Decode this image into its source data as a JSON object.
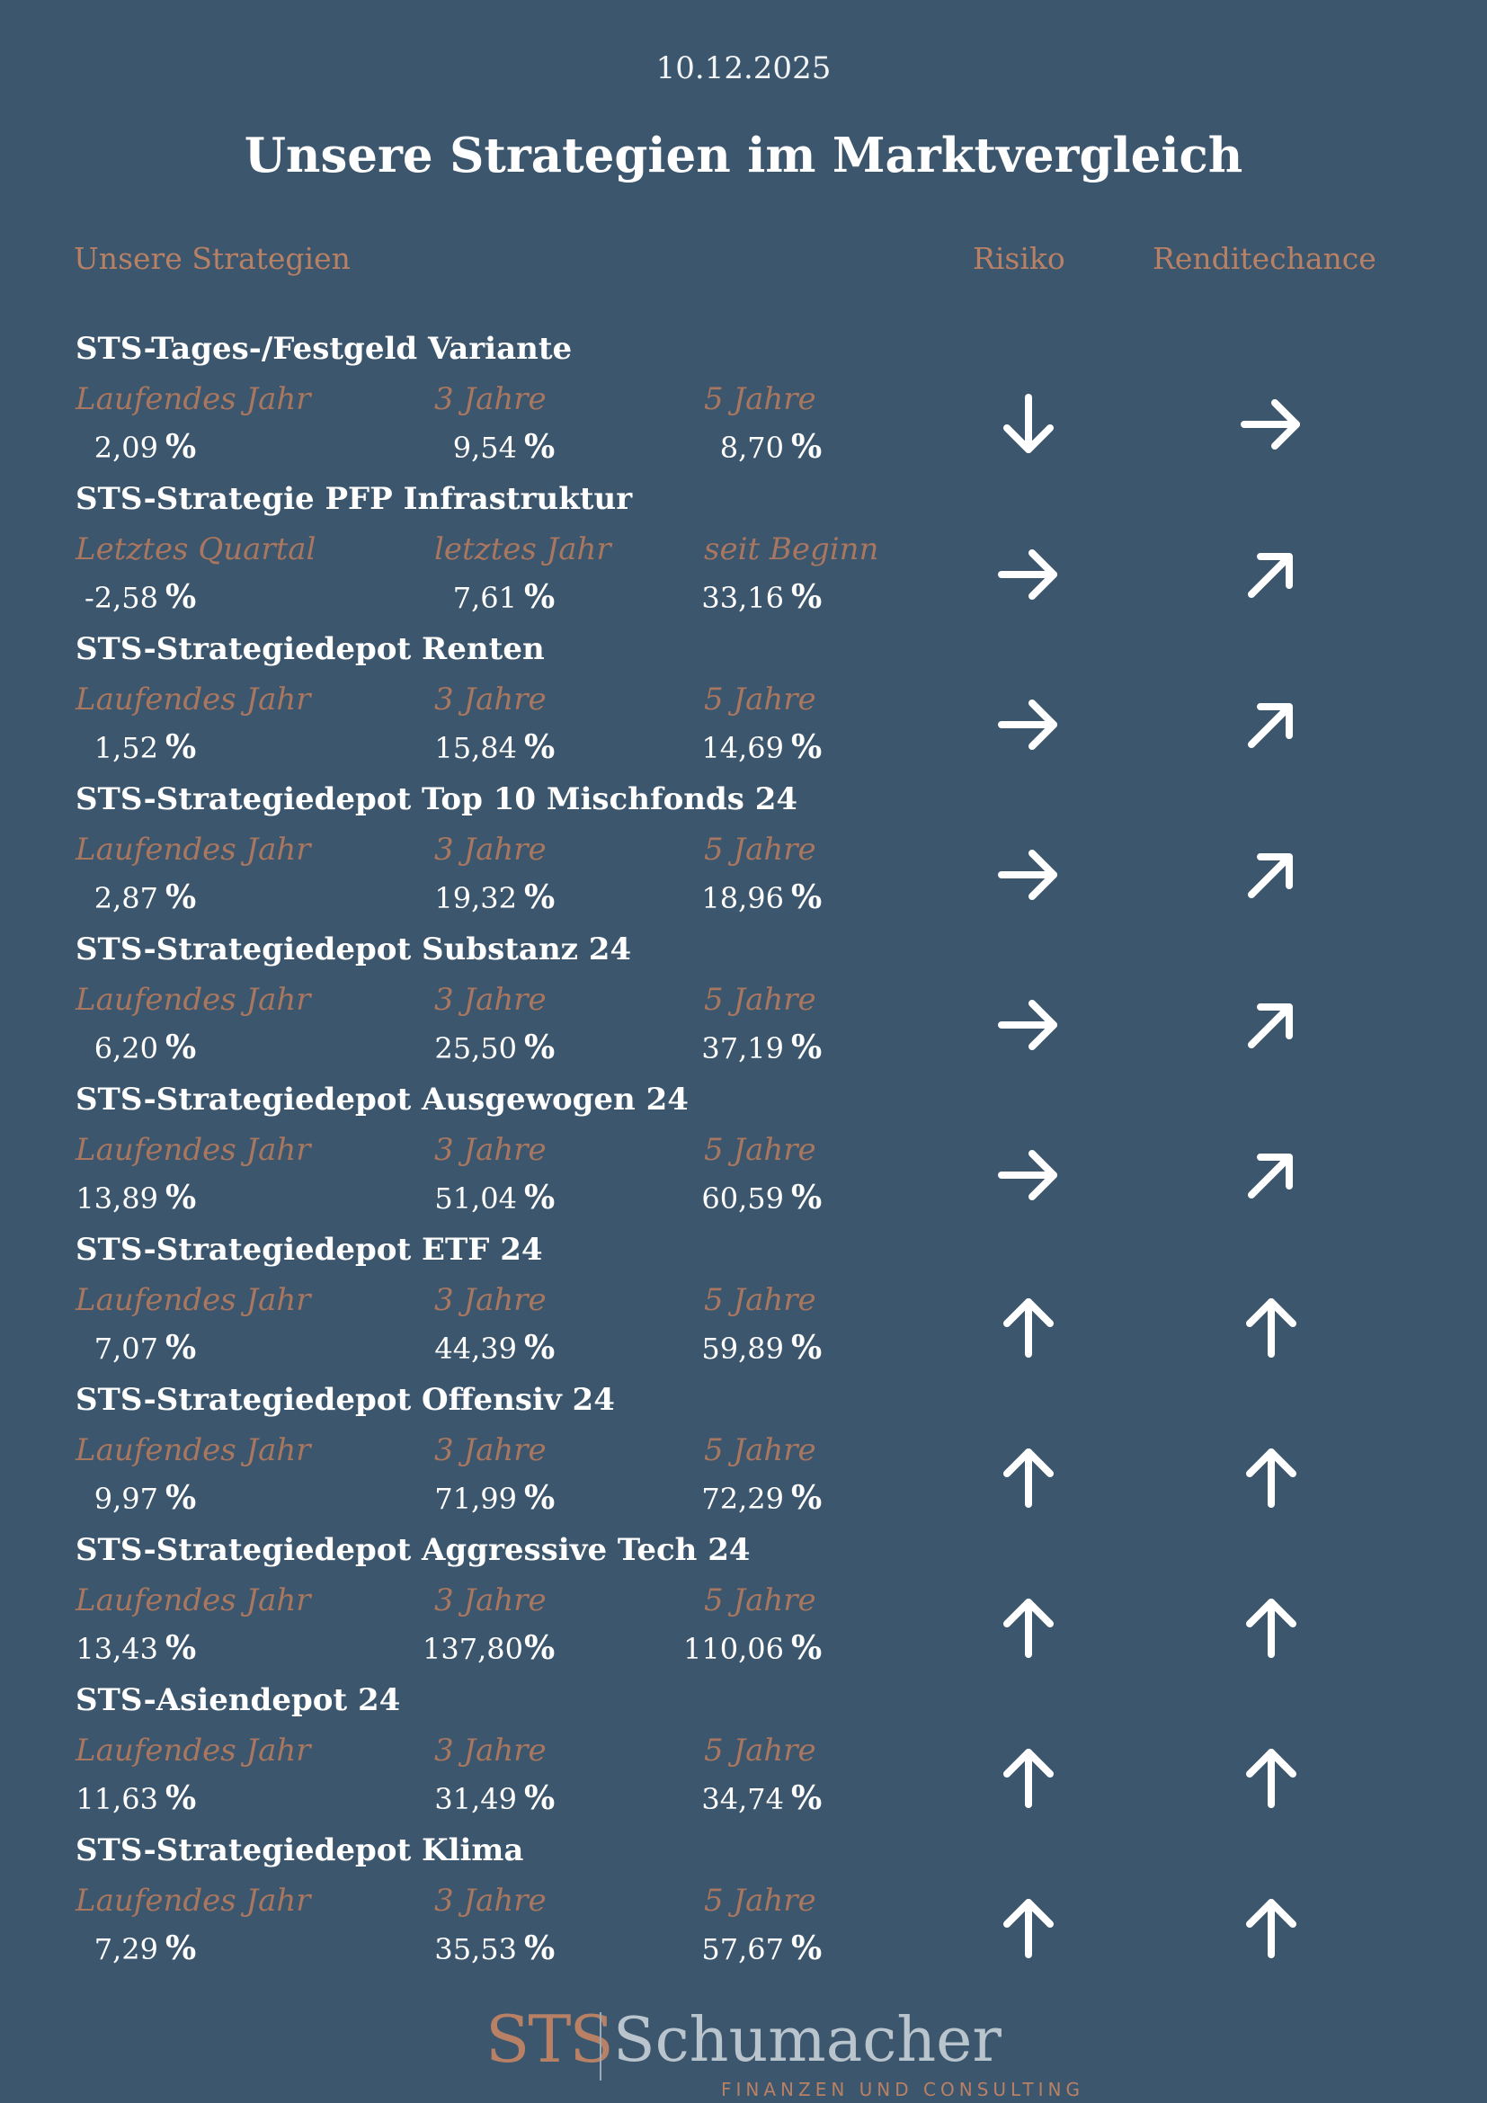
{
  "date": "10.12.2025",
  "title": "Unsere Strategien im Marktvergleich",
  "columns": {
    "strategies": "Unsere Strategien",
    "risk": "Risiko",
    "return_chance": "Renditechance"
  },
  "percent_sign": "%",
  "strategies": [
    {
      "name": "STS-Tages-/Festgeld Variante",
      "labels": [
        "Laufendes Jahr",
        "3 Jahre",
        "5 Jahre"
      ],
      "values": [
        "2,09",
        "9,54",
        "8,70"
      ],
      "risk_icon": "arrow-down-icon",
      "return_icon": "arrow-right-icon"
    },
    {
      "name": "STS-Strategie PFP Infrastruktur",
      "labels": [
        "Letztes Quartal",
        "letztes Jahr",
        "seit Beginn"
      ],
      "values": [
        "-2,58",
        "7,61",
        "33,16"
      ],
      "risk_icon": "arrow-right-icon",
      "return_icon": "arrow-up-right-icon"
    },
    {
      "name": "STS-Strategiedepot Renten",
      "labels": [
        "Laufendes Jahr",
        "3 Jahre",
        "5 Jahre"
      ],
      "values": [
        "1,52",
        "15,84",
        "14,69"
      ],
      "risk_icon": "arrow-right-icon",
      "return_icon": "arrow-up-right-icon"
    },
    {
      "name": "STS-Strategiedepot Top 10 Mischfonds 24",
      "labels": [
        "Laufendes Jahr",
        "3 Jahre",
        "5 Jahre"
      ],
      "values": [
        "2,87",
        "19,32",
        "18,96"
      ],
      "risk_icon": "arrow-right-icon",
      "return_icon": "arrow-up-right-icon"
    },
    {
      "name": "STS-Strategiedepot Substanz 24",
      "labels": [
        "Laufendes Jahr",
        "3 Jahre",
        "5 Jahre"
      ],
      "values": [
        "6,20",
        "25,50",
        "37,19"
      ],
      "risk_icon": "arrow-right-icon",
      "return_icon": "arrow-up-right-icon"
    },
    {
      "name": "STS-Strategiedepot Ausgewogen 24",
      "labels": [
        "Laufendes Jahr",
        "3 Jahre",
        "5 Jahre"
      ],
      "values": [
        "13,89",
        "51,04",
        "60,59"
      ],
      "risk_icon": "arrow-right-icon",
      "return_icon": "arrow-up-right-icon"
    },
    {
      "name": "STS-Strategiedepot ETF 24",
      "labels": [
        "Laufendes Jahr",
        "3 Jahre",
        "5 Jahre"
      ],
      "values": [
        "7,07",
        "44,39",
        "59,89"
      ],
      "risk_icon": "arrow-up-icon",
      "return_icon": "arrow-up-icon"
    },
    {
      "name": "STS-Strategiedepot Offensiv 24",
      "labels": [
        "Laufendes Jahr",
        "3 Jahre",
        "5 Jahre"
      ],
      "values": [
        "9,97",
        "71,99",
        "72,29"
      ],
      "risk_icon": "arrow-up-icon",
      "return_icon": "arrow-up-icon"
    },
    {
      "name": "STS-Strategiedepot Aggressive Tech 24",
      "labels": [
        "Laufendes Jahr",
        "3 Jahre",
        "5 Jahre"
      ],
      "values": [
        "13,43",
        "137,80",
        "110,06"
      ],
      "risk_icon": "arrow-up-icon",
      "return_icon": "arrow-up-icon"
    },
    {
      "name": "STS-Asiendepot 24",
      "labels": [
        "Laufendes Jahr",
        "3 Jahre",
        "5 Jahre"
      ],
      "values": [
        "11,63",
        "31,49",
        "34,74"
      ],
      "risk_icon": "arrow-up-icon",
      "return_icon": "arrow-up-icon"
    },
    {
      "name": "STS-Strategiedepot Klima",
      "labels": [
        "Laufendes Jahr",
        "3 Jahre",
        "5 Jahre"
      ],
      "values": [
        "7,29",
        "35,53",
        "57,67"
      ],
      "risk_icon": "arrow-up-icon",
      "return_icon": "arrow-up-icon"
    }
  ],
  "logo": {
    "mark": "STS",
    "name": "Schumacher",
    "tagline": "FINANZEN UND CONSULTING"
  },
  "colors": {
    "background": "#3c566d",
    "accent": "#b88165",
    "text": "#ffffff"
  }
}
